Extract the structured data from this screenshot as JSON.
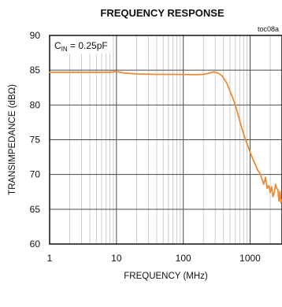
{
  "chart_data": {
    "type": "line",
    "title": "FREQUENCY RESPONSE",
    "figure_tag": "toc08a",
    "annotation": {
      "main": "C",
      "subscript": "IN",
      "rest": " = 0.25pF"
    },
    "xlabel": "FREQUENCY (MHz)",
    "ylabel": "TRANSIMPEDANCE (dBΩ)",
    "xscale": "log",
    "xlim": [
      1,
      3000
    ],
    "ylim": [
      60,
      90
    ],
    "x_ticks": [
      1,
      10,
      100,
      1000
    ],
    "x_tick_labels": [
      "1",
      "10",
      "100",
      "1000"
    ],
    "y_ticks": [
      60,
      65,
      70,
      75,
      80,
      85,
      90
    ],
    "y_tick_labels": [
      "60",
      "65",
      "70",
      "75",
      "80",
      "85",
      "90"
    ],
    "grid": true,
    "series": [
      {
        "color": "#f08a32",
        "x": [
          1,
          2,
          4,
          8,
          10,
          13,
          20,
          40,
          80,
          150,
          200,
          250,
          280,
          300,
          330,
          380,
          450,
          500,
          550,
          600,
          700,
          800,
          900,
          1000,
          1100,
          1200,
          1300,
          1400,
          1500,
          1600,
          1700,
          1800,
          1900,
          2000,
          2100,
          2200,
          2300,
          2400,
          2500,
          2600,
          2700,
          2800,
          2900,
          3000
        ],
        "y": [
          84.7,
          84.7,
          84.7,
          84.7,
          84.8,
          84.6,
          84.45,
          84.4,
          84.4,
          84.35,
          84.4,
          84.6,
          84.75,
          84.7,
          84.6,
          84.2,
          83.1,
          82.0,
          81.0,
          80.0,
          77.7,
          75.8,
          74.4,
          73.2,
          72.2,
          71.4,
          70.6,
          70.2,
          69.4,
          68.6,
          69.6,
          68.0,
          68.4,
          67.4,
          68.2,
          66.8,
          67.4,
          68.6,
          68.0,
          67.8,
          66.2,
          67.6,
          65.9,
          66.4
        ]
      }
    ]
  }
}
